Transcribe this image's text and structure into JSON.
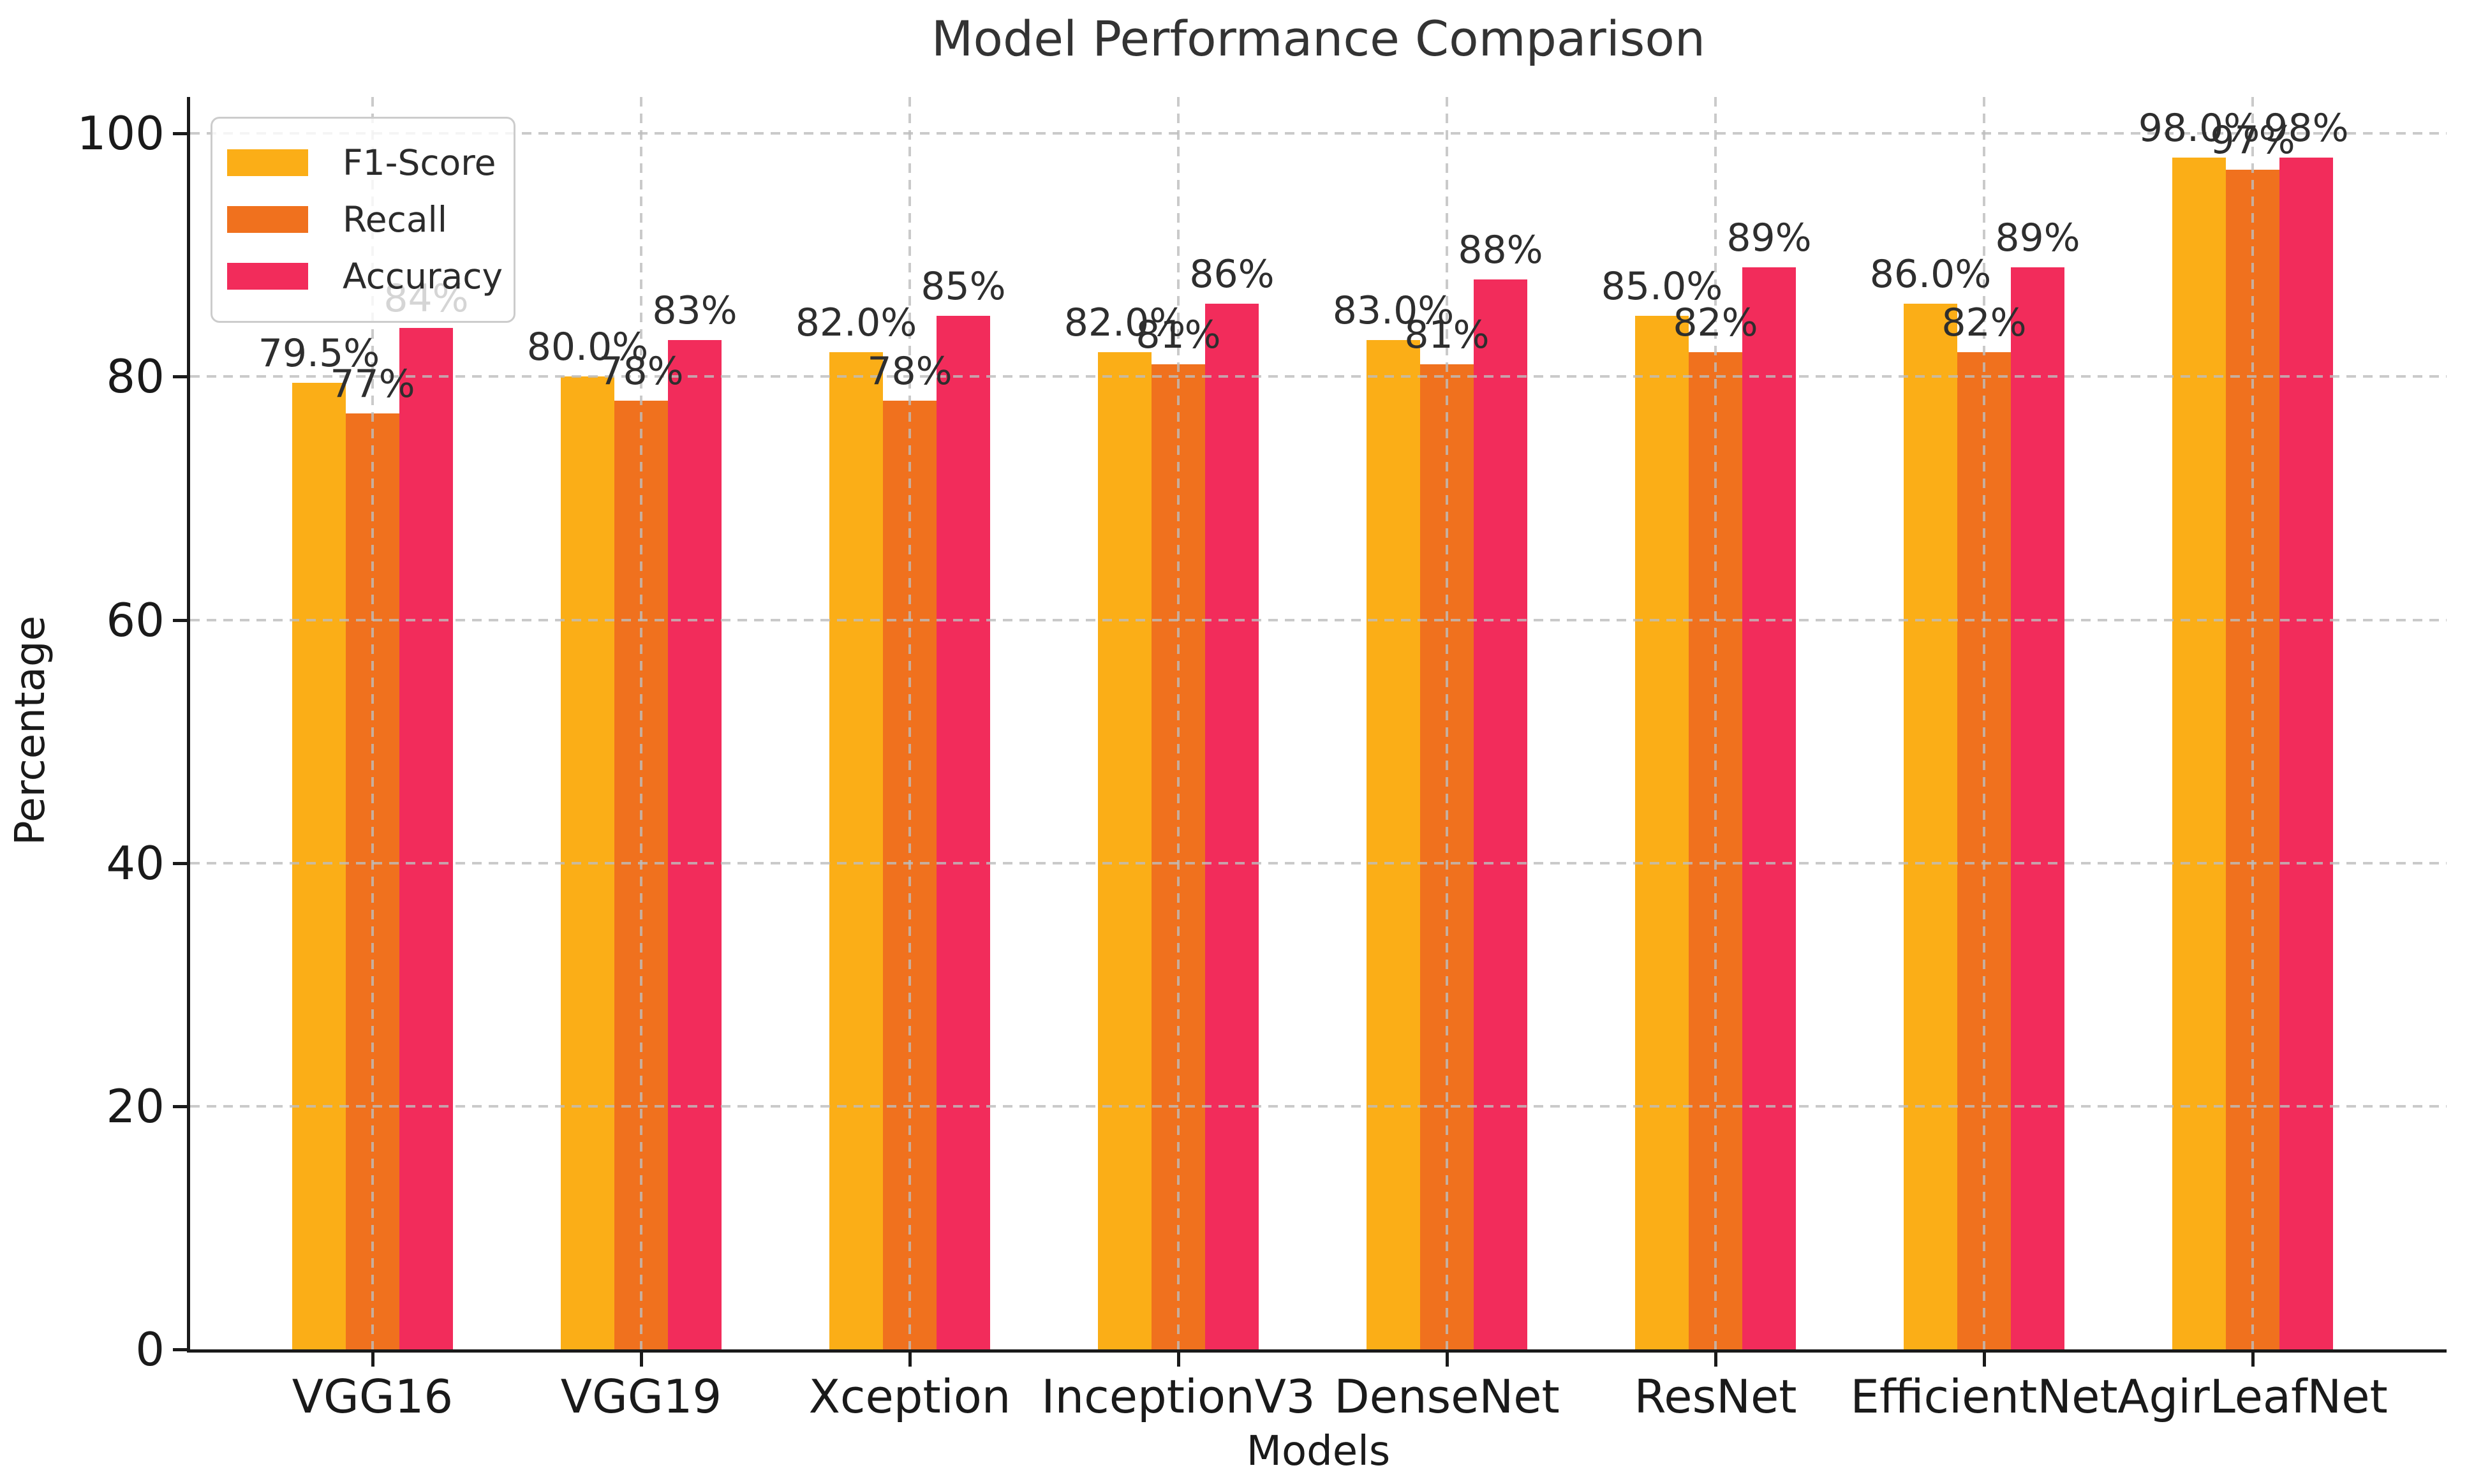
{
  "title": "Model Performance Comparison",
  "axes": {
    "xlabel": "Models",
    "ylabel": "Percentage"
  },
  "colors": {
    "f1_score": "#FBAE17",
    "recall": "#F0711E",
    "accuracy": "#F22C5B",
    "grid": "#BDBDBD",
    "spine": "#1A1A1A",
    "text": "#2B2B2B"
  },
  "legend": {
    "position": "upper left",
    "entries": [
      "F1-Score",
      "Recall",
      "Accuracy"
    ]
  },
  "chart_data": {
    "type": "bar",
    "title": "Model Performance Comparison",
    "xlabel": "Models",
    "ylabel": "Percentage",
    "categories": [
      "VGG16",
      "VGG19",
      "Xception",
      "InceptionV3",
      "DenseNet",
      "ResNet",
      "EfficientNet",
      "AgirLeafNet"
    ],
    "series": [
      {
        "name": "F1-Score",
        "color": "#FBAE17",
        "values": [
          79.5,
          80.0,
          82.0,
          82.0,
          83.0,
          85.0,
          86.0,
          98.0
        ],
        "labels": [
          "79.5%",
          "80.0%",
          "82.0%",
          "82.0%",
          "83.0%",
          "85.0%",
          "86.0%",
          "98.0%"
        ]
      },
      {
        "name": "Recall",
        "color": "#F0711E",
        "values": [
          77,
          78,
          78,
          81,
          81,
          82,
          82,
          97
        ],
        "labels": [
          "77%",
          "78%",
          "78%",
          "81%",
          "81%",
          "82%",
          "82%",
          "97%"
        ]
      },
      {
        "name": "Accuracy",
        "color": "#F22C5B",
        "values": [
          84,
          83,
          85,
          86,
          88,
          89,
          89,
          98
        ],
        "labels": [
          "84%",
          "83%",
          "85%",
          "86%",
          "88%",
          "89%",
          "89%",
          "98%"
        ]
      }
    ],
    "ylim": [
      0,
      103
    ],
    "yticks": [
      0,
      20,
      40,
      60,
      80,
      100
    ],
    "grid": true,
    "grid_style": "dashed",
    "legend_position": "upper left"
  }
}
